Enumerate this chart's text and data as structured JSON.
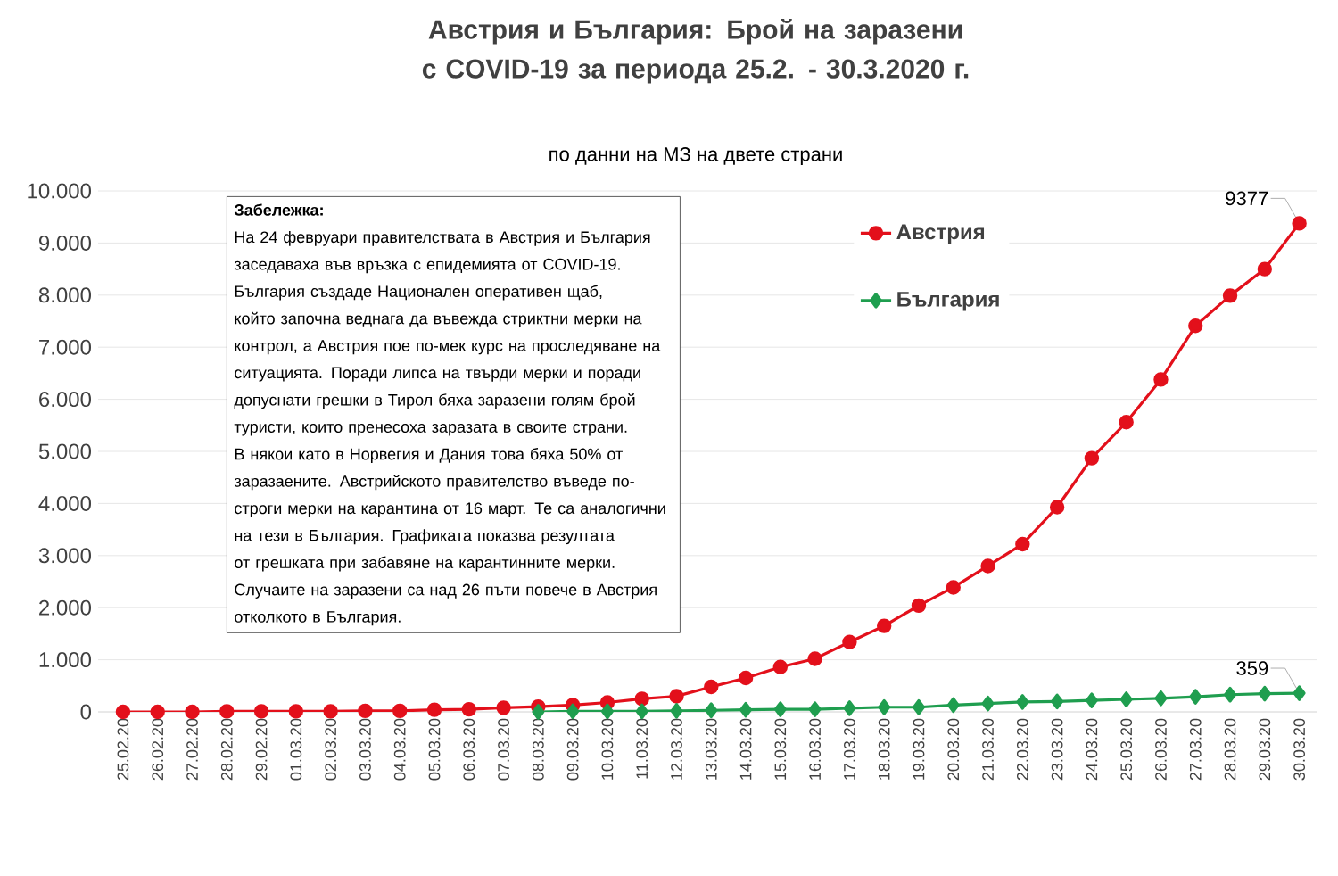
{
  "chart_data": {
    "type": "line",
    "title": "Австрия и България: Брой на заразени с COVID-19 за периода 25.2. - 30.3.2020 г.",
    "subtitle": "по данни на МЗ на двете страни",
    "annotations": [
      "Забележка:",
      "На 24 февруари правителствата в Австрия и България заседаваха във връзка с епидемията от COVID-19. България създаде Национален оперативен щаб, който започна веднага да въвежда стриктни мерки на контрол, а Австрия пое по-мек курс на проследяване на ситуацията. Поради липса на твърди мерки и поради допуснати грешки в Тирол бяха заразени голям брой туристи, които пренесоха заразата в своите страни. В някои като в Норвегия и Дания това бяха 50% от заразаените. Австрийското правителство въведе по-строги мерки на карантина от 16 март. Те са аналогични на тези в България. Графиката показва резултата от грешката при забавяне на карантинните мерки. Случаите на заразени са над 26 пъти повече в Австрия отколкото в България."
    ],
    "categories": [
      "25.02.20",
      "26.02.20",
      "27.02.20",
      "28.02.20",
      "29.02.20",
      "01.03.20",
      "02.03.20",
      "03.03.20",
      "04.03.20",
      "05.03.20",
      "06.03.20",
      "07.03.20",
      "08.03.20",
      "09.03.20",
      "10.03.20",
      "11.03.20",
      "12.03.20",
      "13.03.20",
      "14.03.20",
      "15.03.20",
      "16.03.20",
      "17.03.20",
      "18.03.20",
      "19.03.20",
      "20.03.20",
      "21.03.20",
      "22.03.20",
      "23.03.20",
      "24.03.20",
      "25.03.20",
      "26.03.20",
      "27.03.20",
      "28.03.20",
      "29.03.20",
      "30.03.20"
    ],
    "series": [
      {
        "name": "Австрия",
        "color": "#e3101b",
        "marker": "circle",
        "values": [
          0,
          0,
          0,
          10,
          10,
          10,
          10,
          20,
          20,
          40,
          50,
          80,
          100,
          130,
          180,
          250,
          300,
          480,
          650,
          860,
          1020,
          1340,
          1650,
          2040,
          2390,
          2800,
          3220,
          3930,
          4870,
          5560,
          6380,
          7410,
          7990,
          8500,
          9377
        ],
        "value_labels": [
          null,
          null,
          null,
          null,
          null,
          null,
          null,
          null,
          null,
          null,
          null,
          null,
          null,
          null,
          null,
          null,
          null,
          null,
          null,
          null,
          null,
          null,
          null,
          null,
          null,
          null,
          null,
          null,
          null,
          null,
          null,
          null,
          null,
          null,
          "9377"
        ]
      },
      {
        "name": "България",
        "color": "#1f9e4f",
        "marker": "diamond",
        "values": [
          null,
          null,
          null,
          null,
          null,
          null,
          null,
          null,
          null,
          null,
          null,
          null,
          0,
          10,
          10,
          10,
          20,
          30,
          40,
          50,
          50,
          70,
          90,
          90,
          130,
          160,
          190,
          200,
          220,
          240,
          260,
          290,
          330,
          350,
          359
        ],
        "value_labels": [
          null,
          null,
          null,
          null,
          null,
          null,
          null,
          null,
          null,
          null,
          null,
          null,
          null,
          null,
          null,
          null,
          null,
          null,
          null,
          null,
          null,
          null,
          null,
          null,
          null,
          null,
          null,
          null,
          null,
          null,
          null,
          null,
          null,
          null,
          "359"
        ]
      }
    ],
    "ylim": [
      0,
      10000
    ],
    "yticks": [
      0,
      {
        "value": 1000,
        "label": "1.000"
      },
      {
        "value": 2000,
        "label": "2.000"
      },
      {
        "value": 3000,
        "label": "3.000"
      },
      {
        "value": 4000,
        "label": "4.000"
      },
      {
        "value": 5000,
        "label": "5.000"
      },
      {
        "value": 6000,
        "label": "6.000"
      },
      {
        "value": 7000,
        "label": "7.000"
      },
      {
        "value": 8000,
        "label": "8.000"
      },
      {
        "value": 9000,
        "label": "9.000"
      },
      {
        "value": 10000,
        "label": "10.000"
      }
    ],
    "grid": "y",
    "legend": "top right"
  }
}
